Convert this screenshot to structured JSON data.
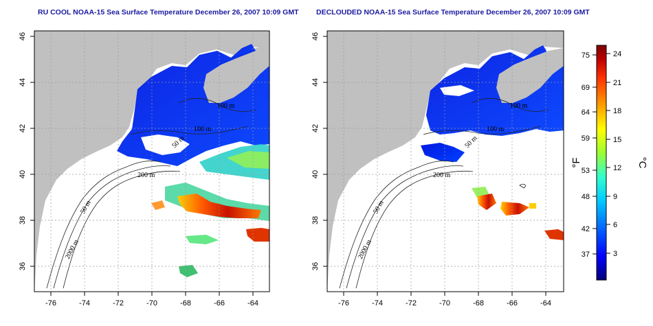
{
  "maps": [
    {
      "title": "RU COOL NOAA-15 Sea Surface Temperature December 26, 2007 10:09 GMT",
      "contour_labels": [
        "100 m",
        "100 m",
        "50 m",
        "200 m",
        "50 m",
        "2000 m"
      ]
    },
    {
      "title": "DECLOUDED NOAA-15 Sea Surface Temperature December 26, 2007 10:09 GMT",
      "contour_labels": [
        "100 m",
        "100 m",
        "50 m",
        "200 m",
        "50 m",
        "2000 m"
      ]
    }
  ],
  "axes": {
    "x_ticks": [
      "-76",
      "-74",
      "-72",
      "-70",
      "-68",
      "-66",
      "-64"
    ],
    "y_ticks": [
      "46",
      "44",
      "42",
      "40",
      "38",
      "36"
    ]
  },
  "colorbar": {
    "fahrenheit_ticks": [
      "75",
      "69",
      "64",
      "59",
      "53",
      "48",
      "42",
      "37"
    ],
    "celsius_ticks": [
      "24",
      "21",
      "18",
      "15",
      "12",
      "9",
      "6",
      "3"
    ],
    "label_f": "°F",
    "label_c": "°C",
    "gradient": [
      "#00007a",
      "#0000ff",
      "#0066ff",
      "#00ccff",
      "#33ffcc",
      "#99ff33",
      "#ffff00",
      "#ff9900",
      "#ff3300",
      "#c00000",
      "#7a0000"
    ]
  },
  "colors": {
    "land": "#c0c0c0",
    "water_no_data": "#ffffff",
    "title": "#1a1aa0"
  }
}
